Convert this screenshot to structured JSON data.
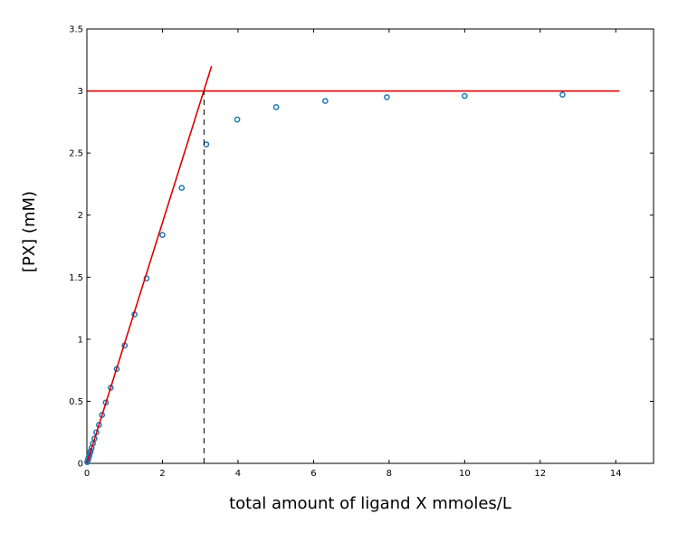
{
  "chart_data": {
    "type": "scatter",
    "title": "",
    "xlabel": "total amount of ligand X mmoles/L",
    "ylabel": "[PX] (mM)",
    "xlim": [
      0,
      15
    ],
    "ylim": [
      0,
      3.5
    ],
    "xticks": [
      0,
      2,
      4,
      6,
      8,
      10,
      12,
      14
    ],
    "yticks": [
      0,
      0.5,
      1,
      1.5,
      2,
      2.5,
      3,
      3.5
    ],
    "grid": false,
    "colors": {
      "points": "#1f77b4",
      "fit_lines": "#dd0000",
      "guide": "#000000"
    },
    "series": [
      {
        "style": "markers-circle-open",
        "x": [
          0.01,
          0.02,
          0.03,
          0.04,
          0.05,
          0.06,
          0.08,
          0.1,
          0.125,
          0.16,
          0.2,
          0.25,
          0.32,
          0.4,
          0.5,
          0.63,
          0.79,
          1.0,
          1.26,
          1.58,
          2.0,
          2.51,
          3.16,
          3.98,
          5.01,
          6.31,
          7.94,
          10.0,
          12.59
        ],
        "y": [
          0.01,
          0.02,
          0.03,
          0.04,
          0.05,
          0.06,
          0.08,
          0.1,
          0.125,
          0.16,
          0.2,
          0.25,
          0.31,
          0.39,
          0.49,
          0.61,
          0.76,
          0.95,
          1.2,
          1.49,
          1.84,
          2.22,
          2.57,
          2.77,
          2.87,
          2.92,
          2.95,
          2.96,
          2.97
        ]
      },
      {
        "style": "line-solid",
        "x": [
          0,
          3.3
        ],
        "y": [
          0,
          3.2
        ]
      },
      {
        "style": "line-solid",
        "x": [
          0,
          14.1
        ],
        "y": [
          3,
          3
        ]
      },
      {
        "style": "line-dashed",
        "x": [
          3.1,
          3.1
        ],
        "y": [
          0,
          3
        ]
      }
    ]
  }
}
